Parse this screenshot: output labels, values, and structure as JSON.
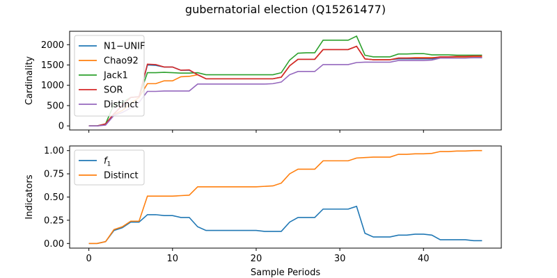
{
  "figure": {
    "title": "gubernatorial election (Q15261477)",
    "xlabel": "Sample Periods"
  },
  "chart_data": [
    {
      "type": "line",
      "ylabel": "Cardinality",
      "xlim": [
        -2.3,
        49.3
      ],
      "ylim": [
        -100,
        2330
      ],
      "xticks": [
        0,
        10,
        20,
        30,
        40
      ],
      "yticks": [
        0,
        500,
        1000,
        1500,
        2000
      ],
      "ytick_labels": [
        "0",
        "500",
        "1000",
        "1500",
        "2000"
      ],
      "show_xtick_labels": false,
      "legend_position": "upper-left",
      "x": [
        0,
        1,
        2,
        3,
        4,
        5,
        6,
        7,
        8,
        9,
        10,
        11,
        12,
        13,
        14,
        15,
        16,
        17,
        18,
        19,
        20,
        21,
        22,
        23,
        24,
        25,
        26,
        27,
        28,
        29,
        30,
        31,
        32,
        33,
        34,
        35,
        36,
        37,
        38,
        39,
        40,
        41,
        42,
        43,
        44,
        45,
        46,
        47
      ],
      "series": [
        {
          "name": "N1−UNIF",
          "color": "#1f77b4",
          "values": [
            0,
            0,
            50,
            300,
            500,
            700,
            720,
            1500,
            1490,
            1450,
            1450,
            1370,
            1370,
            1260,
            1160,
            1160,
            1160,
            1160,
            1160,
            1160,
            1160,
            1160,
            1160,
            1200,
            1480,
            1640,
            1640,
            1640,
            1880,
            1880,
            1880,
            1880,
            1960,
            1650,
            1630,
            1630,
            1630,
            1650,
            1650,
            1650,
            1650,
            1650,
            1680,
            1680,
            1680,
            1680,
            1680,
            1680
          ]
        },
        {
          "name": "Chao92",
          "color": "#ff7f0e",
          "values": [
            0,
            0,
            50,
            280,
            380,
            550,
            700,
            1040,
            1040,
            1110,
            1110,
            1210,
            1220,
            1260,
            1160,
            1160,
            1160,
            1160,
            1160,
            1160,
            1160,
            1160,
            1160,
            1200,
            1480,
            1640,
            1640,
            1640,
            1880,
            1880,
            1880,
            1880,
            1960,
            1650,
            1630,
            1630,
            1630,
            1670,
            1670,
            1680,
            1680,
            1680,
            1690,
            1690,
            1690,
            1690,
            1700,
            1700
          ]
        },
        {
          "name": "Jack1",
          "color": "#2ca02c",
          "values": [
            0,
            0,
            50,
            530,
            580,
            700,
            720,
            1310,
            1310,
            1320,
            1310,
            1300,
            1300,
            1310,
            1260,
            1260,
            1260,
            1260,
            1260,
            1260,
            1260,
            1260,
            1260,
            1310,
            1620,
            1790,
            1800,
            1800,
            2110,
            2110,
            2110,
            2110,
            2210,
            1740,
            1700,
            1700,
            1700,
            1770,
            1770,
            1780,
            1780,
            1750,
            1750,
            1750,
            1740,
            1740,
            1740,
            1740
          ]
        },
        {
          "name": "SOR",
          "color": "#d62728",
          "values": [
            0,
            0,
            50,
            300,
            500,
            700,
            720,
            1520,
            1510,
            1450,
            1450,
            1370,
            1380,
            1260,
            1160,
            1160,
            1160,
            1160,
            1160,
            1160,
            1160,
            1160,
            1160,
            1200,
            1480,
            1640,
            1640,
            1640,
            1880,
            1880,
            1880,
            1880,
            1960,
            1650,
            1630,
            1630,
            1630,
            1670,
            1670,
            1670,
            1670,
            1670,
            1700,
            1700,
            1710,
            1710,
            1720,
            1720
          ]
        },
        {
          "name": "Distinct",
          "color": "#9467bd",
          "values": [
            0,
            0,
            20,
            260,
            330,
            440,
            580,
            850,
            850,
            860,
            860,
            860,
            860,
            1030,
            1030,
            1030,
            1030,
            1030,
            1030,
            1030,
            1030,
            1030,
            1040,
            1080,
            1260,
            1340,
            1340,
            1340,
            1510,
            1510,
            1510,
            1510,
            1560,
            1570,
            1570,
            1570,
            1570,
            1610,
            1610,
            1610,
            1610,
            1620,
            1670,
            1670,
            1670,
            1670,
            1680,
            1680
          ]
        }
      ]
    },
    {
      "type": "line",
      "ylabel": "Indicators",
      "xlim": [
        -2.3,
        49.3
      ],
      "ylim": [
        -0.05,
        1.05
      ],
      "xticks": [
        0,
        10,
        20,
        30,
        40
      ],
      "xtick_labels": [
        "0",
        "10",
        "20",
        "30",
        "40"
      ],
      "yticks": [
        0.0,
        0.25,
        0.5,
        0.75,
        1.0
      ],
      "ytick_labels": [
        "0.00",
        "0.25",
        "0.50",
        "0.75",
        "1.00"
      ],
      "show_xtick_labels": true,
      "legend_position": "upper-left",
      "x": [
        0,
        1,
        2,
        3,
        4,
        5,
        6,
        7,
        8,
        9,
        10,
        11,
        12,
        13,
        14,
        15,
        16,
        17,
        18,
        19,
        20,
        21,
        22,
        23,
        24,
        25,
        26,
        27,
        28,
        29,
        30,
        31,
        32,
        33,
        34,
        35,
        36,
        37,
        38,
        39,
        40,
        41,
        42,
        43,
        44,
        45,
        46,
        47
      ],
      "series": [
        {
          "name": "f1",
          "color": "#1f77b4",
          "values": [
            0.0,
            0.0,
            0.02,
            0.14,
            0.17,
            0.23,
            0.23,
            0.31,
            0.31,
            0.3,
            0.3,
            0.28,
            0.28,
            0.18,
            0.14,
            0.14,
            0.14,
            0.14,
            0.14,
            0.14,
            0.14,
            0.13,
            0.13,
            0.13,
            0.23,
            0.28,
            0.28,
            0.28,
            0.37,
            0.37,
            0.37,
            0.37,
            0.4,
            0.11,
            0.07,
            0.07,
            0.07,
            0.09,
            0.09,
            0.1,
            0.1,
            0.09,
            0.04,
            0.04,
            0.04,
            0.04,
            0.03,
            0.03
          ]
        },
        {
          "name": "Distinct",
          "color": "#ff7f0e",
          "values": [
            0.0,
            0.0,
            0.02,
            0.15,
            0.18,
            0.24,
            0.24,
            0.51,
            0.51,
            0.51,
            0.51,
            0.515,
            0.52,
            0.61,
            0.61,
            0.61,
            0.61,
            0.61,
            0.61,
            0.61,
            0.61,
            0.615,
            0.62,
            0.65,
            0.75,
            0.8,
            0.8,
            0.8,
            0.89,
            0.89,
            0.89,
            0.89,
            0.92,
            0.925,
            0.93,
            0.93,
            0.93,
            0.96,
            0.96,
            0.965,
            0.965,
            0.97,
            0.99,
            0.99,
            0.995,
            0.995,
            1.0,
            1.0
          ]
        }
      ]
    }
  ]
}
